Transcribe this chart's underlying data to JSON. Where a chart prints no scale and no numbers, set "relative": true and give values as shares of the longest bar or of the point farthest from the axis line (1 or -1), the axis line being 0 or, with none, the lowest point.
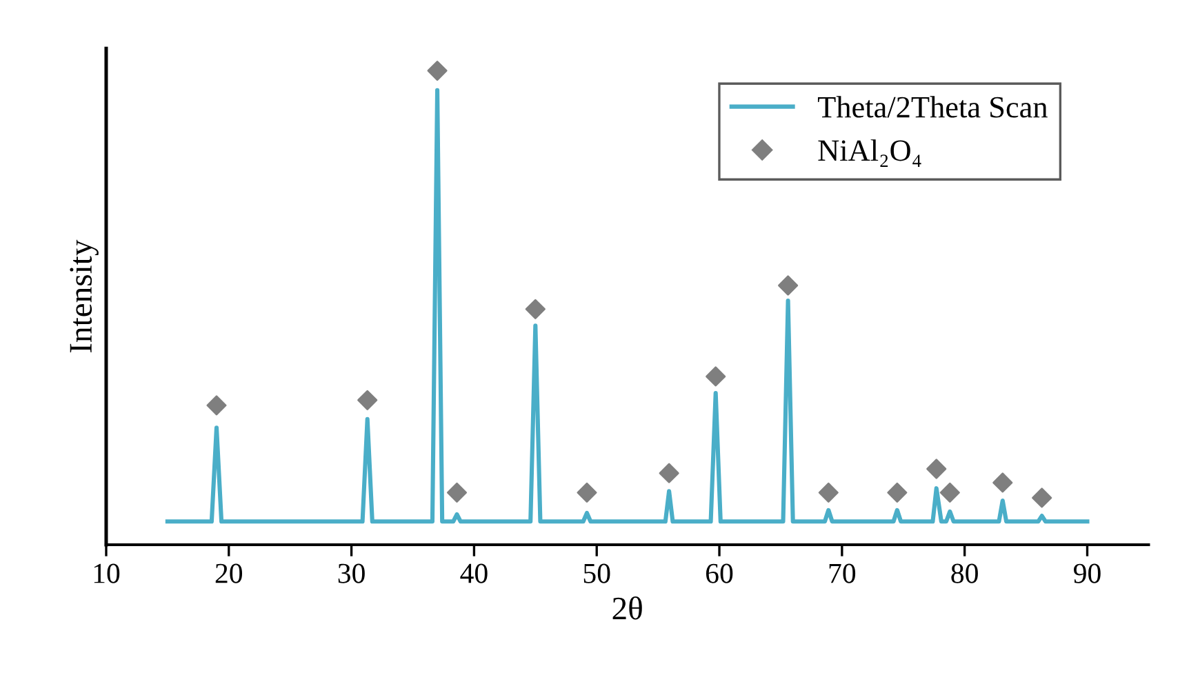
{
  "chart_data": {
    "type": "line",
    "xlabel": "2θ",
    "ylabel": "Intensity",
    "relative": true,
    "xlim": [
      10,
      95
    ],
    "xticks": [
      10,
      20,
      30,
      40,
      50,
      60,
      70,
      80,
      90
    ],
    "grid": false,
    "legend": "top right",
    "series": [
      {
        "name": "Theta/2Theta Scan",
        "color": "#4aaec8",
        "marker": "none",
        "line_style": "solid",
        "x": [
          15,
          18.6,
          19.0,
          19.4,
          30.9,
          31.3,
          31.7,
          36.6,
          37.0,
          37.4,
          38.3,
          38.6,
          38.9,
          44.6,
          45.0,
          45.4,
          48.9,
          49.2,
          49.5,
          55.6,
          55.9,
          56.2,
          59.3,
          59.7,
          60.1,
          65.2,
          65.6,
          66.0,
          68.6,
          68.9,
          69.2,
          74.2,
          74.5,
          74.8,
          77.4,
          77.7,
          78.1,
          78.5,
          78.8,
          79.1,
          82.8,
          83.1,
          83.4,
          86.0,
          86.3,
          86.6,
          90
        ],
        "values": [
          0.049,
          0.049,
          0.247,
          0.049,
          0.049,
          0.265,
          0.049,
          0.049,
          0.959,
          0.049,
          0.049,
          0.064,
          0.049,
          0.049,
          0.462,
          0.049,
          0.049,
          0.067,
          0.049,
          0.049,
          0.113,
          0.049,
          0.049,
          0.32,
          0.049,
          0.049,
          0.515,
          0.049,
          0.049,
          0.073,
          0.049,
          0.049,
          0.073,
          0.049,
          0.049,
          0.119,
          0.049,
          0.049,
          0.07,
          0.049,
          0.049,
          0.093,
          0.049,
          0.049,
          0.061,
          0.049,
          0.049
        ]
      },
      {
        "name": "NiAl₂O₄",
        "color": "#7f7f7f",
        "type": "scatter",
        "marker": "diamond",
        "x": [
          19.0,
          31.3,
          37.0,
          38.6,
          45.0,
          49.2,
          55.9,
          59.7,
          65.6,
          68.9,
          74.5,
          77.7,
          78.8,
          83.1,
          86.3
        ],
        "values": [
          0.294,
          0.305,
          1,
          0.11,
          0.497,
          0.11,
          0.151,
          0.355,
          0.547,
          0.11,
          0.11,
          0.16,
          0.11,
          0.131,
          0.099
        ]
      }
    ]
  }
}
